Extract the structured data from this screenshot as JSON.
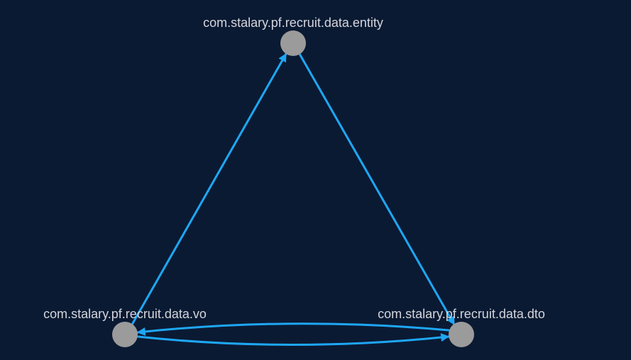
{
  "graph": {
    "colors": {
      "background": "#0b1a33",
      "node": "#9b9b9b",
      "edge": "#1ea7f5",
      "label": "#d3d6dc"
    },
    "nodes": [
      {
        "id": "entity",
        "label": "com.stalary.pf.recruit.data.entity"
      },
      {
        "id": "vo",
        "label": "com.stalary.pf.recruit.data.vo"
      },
      {
        "id": "dto",
        "label": "com.stalary.pf.recruit.data.dto"
      }
    ],
    "edges": [
      {
        "from": "vo",
        "to": "entity"
      },
      {
        "from": "entity",
        "to": "dto"
      },
      {
        "from": "vo",
        "to": "dto"
      },
      {
        "from": "dto",
        "to": "vo"
      }
    ]
  }
}
